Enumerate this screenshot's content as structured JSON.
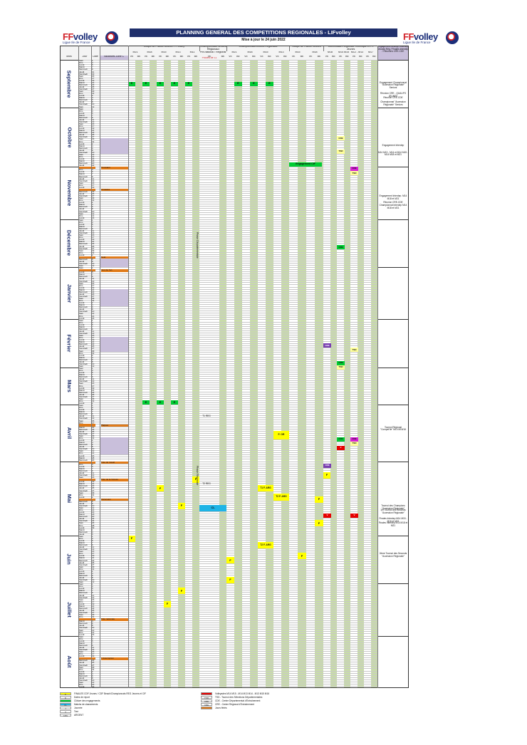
{
  "header": {
    "title": "PLANNING GENERAL DES COMPETITIONS REGIONALES - LIFvolley",
    "subtitle": "Mise à jour le 24 juin 2022",
    "logo_text_ff": "FF",
    "logo_text_volley": "volley",
    "logo_sub": "Ligue Ile de France"
  },
  "columns": {
    "left": [
      "Mois",
      "Jour",
      "Date"
    ],
    "vacances": "Vacances Zone C",
    "groups": [
      {
        "label": "Coupe de France Jeunes - FFvolley",
        "sub": [
          "M21",
          "M18",
          "M15",
          "M13",
          "M11"
        ]
      },
      {
        "label": "Championnats Séniors Régionaux",
        "sub": [
          "Pré-national / Régional"
        ]
      },
      {
        "label": "Championnats Jeunes Régionaux",
        "sub": [
          "M21",
          "M18",
          "M15",
          "M13"
        ]
      },
      {
        "label": "Coupe de France Jeunes",
        "sub": [
          "M15",
          "M18"
        ]
      },
      {
        "label": "Commission Régionale Technique et Ph Jeunes",
        "sub": [
          "M18",
          "M14 M15",
          "M12 - M13",
          "M17"
        ]
      },
      {
        "label": "Engagement Champ. Interdep. Jeunes Rég / Finales Interdep / Réunions CRE-CDE",
        "sub": []
      }
    ],
    "ve_be": [
      "VE",
      "BE"
    ],
    "poules_label": "Poules de 11",
    "poules_label2": "Poules de 9 ou 10"
  },
  "months": [
    "Septembre",
    "Octobre",
    "Novembre",
    "Décembre",
    "Janvier",
    "Février",
    "Mars",
    "Avril",
    "Mai",
    "Juin",
    "Juillet",
    "Août"
  ],
  "day_names": [
    "Sam",
    "Dim",
    "Lundi",
    "Mardi",
    "Mercredi",
    "Jeudi",
    "Vendredi"
  ],
  "holidays": {
    "toussaint": "Toussaint",
    "armistice": "Armistice",
    "noel": "Noël",
    "jour_an": "Jour de l'an",
    "paques": "Pâques",
    "fete_travail": "Fête du travail",
    "victoire": "Fête de la Victoire",
    "ascension": "Ascension",
    "fete_nationale": "Fête nationale",
    "assomption": "L'Assomption"
  },
  "blocks": {
    "engagement_cif": "Engagement CIF",
    "phase_depart": "Phase Départementale",
    "phase_regionale": "Phase Régionale",
    "t1_reg": "T1 REG",
    "t2_reg": "T2 REG",
    "cl": "CL",
    "cre": "CRE",
    "cde": "CDE",
    "tsd": "TSD",
    "f": "F",
    "f_or": "F. OR",
    "t1_f_arg": "T1 F. ARG",
    "t2_f_arg": "T2 F. ARG",
    "v": "V",
    "e": "E"
  },
  "notes": {
    "sept1": "Engagement Championnat \"Accession Régionale\" Seniors",
    "sept2": "Réunion CRE - QUALIFS JEUNES",
    "sept3": "Réunion CRE-CDE",
    "sept4": "Championnat \"Accession Régionale\" Seniors",
    "oct1": "Engagement Interdep",
    "oct2": "M14 M13 - M14 et M14 M15 - M14 M18 et M21",
    "nov1": "Engagement Interdep. M14 M18 et M21",
    "nov2": "Réunion CRE-CDE Championnat Interdep M14 M18 et M21",
    "avril1": "Tournoi Régional \"Compet'Ile\" M14 M15/16",
    "mai1": "Tournoi des Champions \"Accession Régionale\"",
    "mai2": "1er Tournoi des Seconds \"Accession Régionale\"",
    "mai3": "Finales Interdep M14 M15 - M16 et M21",
    "mai4": "Finales Interdep M14 M18 et M21",
    "juin1": "2ème Tournoi des Seconds \"Accession Régionale\""
  },
  "legend": {
    "left": [
      {
        "color": "#ffff00",
        "code": "F",
        "text": "FINALES CDF Jeunes / CDF Beach/Championnats REG Jeunes et CIF"
      },
      {
        "color": "#ffffff",
        "code": "E",
        "text": "Dates de report"
      },
      {
        "color": "#00cc33",
        "code": "",
        "text": "Clôture des engagements"
      },
      {
        "color": "#1eb4e6",
        "code": "CL",
        "text": "Matchs de classements"
      },
      {
        "color": "#ffffff",
        "code": "J",
        "text": "Journée"
      },
      {
        "color": "#ffffff",
        "code": "T",
        "text": "Tour"
      },
      {
        "color": "#ffffff",
        "code": "ARG",
        "text": "ARGENT"
      }
    ],
    "right": [
      {
        "color": "#e60000",
        "code": "",
        "text": "Volleyades M14 M15 - M14 M13 M14 - M13 M15 M16"
      },
      {
        "color": "#ffffff",
        "code": "TSD",
        "text": "TSD - Tournoi des Sélections Départementales"
      },
      {
        "color": "#ffffff",
        "code": "CDE",
        "text": "CDE - Centre Départemental d'Entraînement"
      },
      {
        "color": "#ffffff",
        "code": "CRE",
        "text": "CRE - Centre Régional d'Entraînement"
      },
      {
        "color": "#e07b1a",
        "code": "",
        "text": "Jours fériés"
      }
    ]
  },
  "colors": {
    "navy": "#1f2f6b",
    "green_col": "#c8dca8",
    "lavender": "#c9bfdb",
    "orange": "#e07b1a",
    "green_block": "#00cc33",
    "yellow": "#ffff00",
    "cyan": "#1eb4e6",
    "red": "#e60000",
    "purple": "#7a3fb0",
    "magenta": "#d61fd6"
  }
}
